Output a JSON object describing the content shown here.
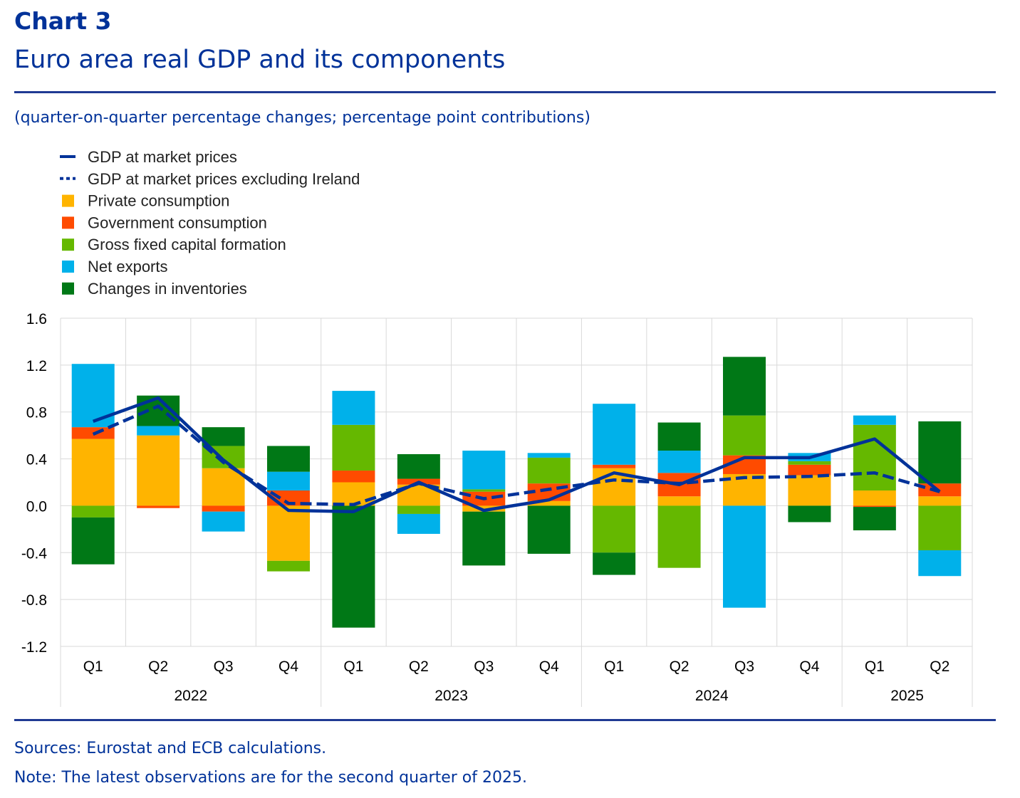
{
  "header": {
    "label": "Chart 3",
    "title": "Euro area real GDP and its components",
    "subtitle": "(quarter-on-quarter percentage changes; percentage point contributions)"
  },
  "footer": {
    "sources": "Sources: Eurostat and ECB calculations.",
    "note": "Note: The latest observations are for the second quarter of 2025."
  },
  "colors": {
    "gdp": "#003299",
    "private_consumption": "#FFB400",
    "government_consumption": "#FF4B00",
    "gfcf": "#65B800",
    "net_exports": "#00B1EA",
    "inventories": "#007816",
    "grid": "#d9d9d9",
    "axis_text": "#000000"
  },
  "chart_data": {
    "type": "bar",
    "stacked": true,
    "categories": [
      "Q1",
      "Q2",
      "Q3",
      "Q4",
      "Q1",
      "Q2",
      "Q3",
      "Q4",
      "Q1",
      "Q2",
      "Q3",
      "Q4",
      "Q1",
      "Q2"
    ],
    "year_groups": [
      {
        "label": "2022",
        "count": 4
      },
      {
        "label": "2023",
        "count": 4
      },
      {
        "label": "2024",
        "count": 4
      },
      {
        "label": "2025",
        "count": 2
      }
    ],
    "ylim": [
      -1.2,
      1.6
    ],
    "yticks": [
      "1.6",
      "1.2",
      "0.8",
      "0.4",
      "0.0",
      "-0.4",
      "-0.8",
      "-1.2"
    ],
    "ytick_values": [
      1.6,
      1.2,
      0.8,
      0.4,
      0.0,
      -0.4,
      -0.8,
      -1.2
    ],
    "legend": [
      {
        "key": "gdp",
        "label": "GDP at market prices",
        "style": "line"
      },
      {
        "key": "gdp_ex_ie",
        "label": "GDP at market prices excluding Ireland",
        "style": "dashed"
      },
      {
        "key": "private_consumption",
        "label": "Private consumption",
        "style": "box"
      },
      {
        "key": "government_consumption",
        "label": "Government consumption",
        "style": "box"
      },
      {
        "key": "gfcf",
        "label": "Gross fixed capital formation",
        "style": "box"
      },
      {
        "key": "net_exports",
        "label": "Net exports",
        "style": "box"
      },
      {
        "key": "inventories",
        "label": "Changes in inventories",
        "style": "box"
      }
    ],
    "series": [
      {
        "name": "Private consumption",
        "key": "private_consumption",
        "values": [
          0.57,
          0.6,
          0.32,
          -0.47,
          0.2,
          0.18,
          -0.05,
          0.04,
          0.32,
          0.08,
          0.27,
          0.26,
          0.13,
          0.08
        ]
      },
      {
        "name": "Government consumption",
        "key": "government_consumption",
        "values": [
          0.1,
          -0.02,
          -0.05,
          0.13,
          0.1,
          0.05,
          0.12,
          0.15,
          0.03,
          0.2,
          0.16,
          0.09,
          -0.01,
          0.11
        ]
      },
      {
        "name": "Gross fixed capital formation",
        "key": "gfcf",
        "values": [
          -0.1,
          0.0,
          0.19,
          -0.09,
          0.39,
          -0.07,
          0.02,
          0.22,
          -0.4,
          -0.53,
          0.34,
          0.03,
          0.56,
          -0.38
        ]
      },
      {
        "name": "Net exports",
        "key": "net_exports",
        "values": [
          0.54,
          0.08,
          -0.17,
          0.16,
          0.29,
          -0.17,
          0.33,
          0.04,
          0.52,
          0.19,
          -0.87,
          0.07,
          0.08,
          -0.22
        ]
      },
      {
        "name": "Changes in inventories",
        "key": "inventories",
        "values": [
          -0.4,
          0.26,
          0.16,
          0.22,
          -1.04,
          0.21,
          -0.46,
          -0.41,
          -0.19,
          0.24,
          0.5,
          -0.14,
          -0.2,
          0.53
        ]
      }
    ],
    "lines": [
      {
        "name": "GDP at market prices",
        "key": "gdp",
        "values": [
          0.72,
          0.92,
          0.39,
          -0.04,
          -0.05,
          0.2,
          -0.04,
          0.05,
          0.28,
          0.18,
          0.41,
          0.41,
          0.57,
          0.12
        ]
      },
      {
        "name": "GDP at market prices excluding Ireland",
        "key": "gdp_ex_ie",
        "values": [
          0.61,
          0.85,
          0.37,
          0.02,
          0.01,
          0.19,
          0.06,
          0.14,
          0.22,
          0.19,
          0.24,
          0.25,
          0.28,
          0.12
        ]
      }
    ]
  }
}
